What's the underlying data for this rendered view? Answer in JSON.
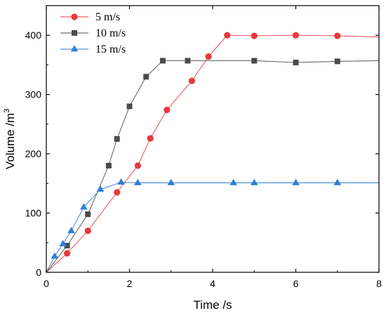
{
  "chart_data": {
    "type": "line",
    "xlabel": "Time /s",
    "ylabel": "Volume /m",
    "ylabel_sup": "3",
    "xlim": [
      0,
      8
    ],
    "ylim": [
      0,
      450
    ],
    "xticks": [
      0,
      2,
      4,
      6,
      8
    ],
    "yticks": [
      0,
      100,
      200,
      300,
      400
    ],
    "grid": false,
    "legend_position": "top-left",
    "series": [
      {
        "name": "5 m/s",
        "color": "#e8383d",
        "marker": "circle",
        "x": [
          0,
          0.5,
          1.0,
          1.7,
          2.2,
          2.5,
          2.9,
          3.5,
          3.9,
          4.35,
          5.0,
          6.0,
          7.0,
          8.0
        ],
        "y": [
          0,
          32,
          70,
          135,
          180,
          226,
          274,
          323,
          364,
          400,
          399,
          400,
          399,
          397
        ],
        "markers": [
          false,
          true,
          true,
          true,
          true,
          true,
          true,
          true,
          true,
          true,
          true,
          true,
          true,
          false
        ]
      },
      {
        "name": "10 m/s",
        "color": "#4b4b4b",
        "marker": "square",
        "x": [
          0,
          0.5,
          1.0,
          1.5,
          1.7,
          2.0,
          2.4,
          2.8,
          3.4,
          5.0,
          6.0,
          7.0,
          8.0
        ],
        "y": [
          0,
          45,
          98,
          180,
          225,
          280,
          330,
          357,
          357,
          357,
          354,
          356,
          357
        ],
        "markers": [
          false,
          true,
          true,
          true,
          true,
          true,
          true,
          true,
          true,
          true,
          true,
          true,
          false
        ]
      },
      {
        "name": "15 m/s",
        "color": "#2f7ed8",
        "marker": "triangle",
        "x": [
          0,
          0.2,
          0.4,
          0.6,
          0.9,
          1.3,
          1.8,
          2.2,
          3.0,
          4.5,
          5.0,
          6.0,
          7.0,
          8.0
        ],
        "y": [
          0,
          27,
          48,
          70,
          110,
          140,
          152,
          151,
          151,
          151,
          151,
          151,
          151,
          151
        ],
        "markers": [
          false,
          true,
          true,
          true,
          true,
          true,
          true,
          true,
          true,
          true,
          true,
          true,
          true,
          false
        ]
      }
    ]
  }
}
